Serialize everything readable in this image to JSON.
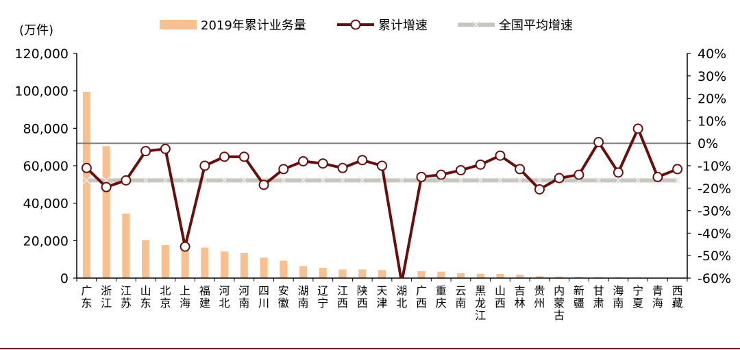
{
  "chart_data": {
    "type": "bar+line",
    "y_unit": "(万件)",
    "categories": [
      "广东",
      "浙江",
      "江苏",
      "山东",
      "北京",
      "上海",
      "福建",
      "河北",
      "河南",
      "四川",
      "安徽",
      "湖南",
      "辽宁",
      "江西",
      "陕西",
      "天津",
      "湖北",
      "广西",
      "重庆",
      "云南",
      "黑龙江",
      "山西",
      "吉林",
      "贵州",
      "内蒙古",
      "新疆",
      "甘肃",
      "海南",
      "宁夏",
      "青海",
      "西藏"
    ],
    "series": [
      {
        "name": "2019年累计业务量",
        "type": "bar",
        "axis": "left",
        "values": [
          99500,
          70500,
          34500,
          20300,
          17600,
          17000,
          16300,
          14200,
          13500,
          11000,
          9300,
          6400,
          5500,
          4600,
          4600,
          4300,
          200,
          3700,
          3400,
          2600,
          2300,
          2200,
          1800,
          1000,
          800,
          700,
          600,
          500,
          300,
          200,
          100
        ]
      },
      {
        "name": "累计增速",
        "type": "line",
        "axis": "right",
        "values": [
          -11,
          -19.5,
          -16.5,
          -3.5,
          -2.5,
          -46,
          -10,
          -6,
          -6,
          -18.5,
          -11.5,
          -8,
          -9,
          -11,
          -7.5,
          -10,
          -62,
          -15,
          -14,
          -12,
          -9.5,
          -5.5,
          -11.5,
          -20.5,
          -15.5,
          -14,
          0.5,
          -13,
          6.5,
          -15,
          -11.5
        ]
      },
      {
        "name": "全国平均增速",
        "type": "line",
        "axis": "right",
        "values": [
          -16.5,
          -16.5,
          -16.5,
          -16.5,
          -16.5,
          -16.5,
          -16.5,
          -16.5,
          -16.5,
          -16.5,
          -16.5,
          -16.5,
          -16.5,
          -16.5,
          -16.5,
          -16.5,
          -16.5,
          -16.5,
          -16.5,
          -16.5,
          -16.5,
          -16.5,
          -16.5,
          -16.5,
          -16.5,
          -16.5,
          -16.5,
          -16.5,
          -16.5,
          -16.5,
          -16.5
        ]
      }
    ],
    "y_left": {
      "min": 0,
      "max": 120000,
      "step": 20000,
      "ticks": [
        "0",
        "20,000",
        "40,000",
        "60,000",
        "80,000",
        "100,000",
        "120,000"
      ]
    },
    "y_right": {
      "min": -60,
      "max": 40,
      "step": 10,
      "ticks": [
        "-60%",
        "-50%",
        "-40%",
        "-30%",
        "-20%",
        "-10%",
        "0%",
        "10%",
        "20%",
        "30%",
        "40%"
      ]
    },
    "legend_position": "top",
    "colors": {
      "bar": "#f9c08f",
      "growth_line": "#6b0d0b",
      "average_line": "#c7c7bd",
      "axis": "#000000",
      "zero_line": "#7f7f7f",
      "frame": "#8b1a1a"
    }
  }
}
